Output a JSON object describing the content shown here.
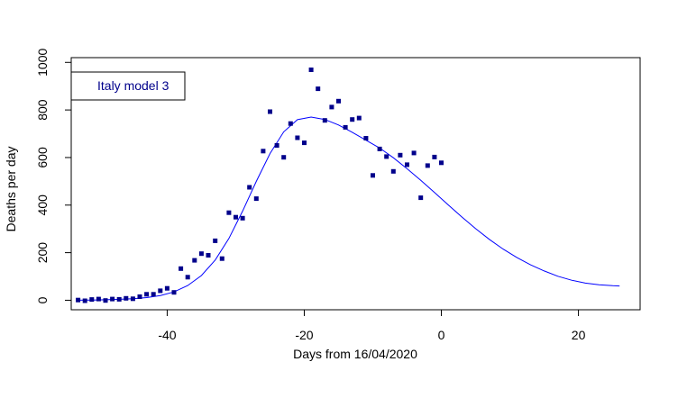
{
  "chart_data": {
    "type": "scatter",
    "title": "",
    "xlabel": "Days from 16/04/2020",
    "ylabel": "Deaths per day",
    "xlim": [
      -54,
      29
    ],
    "ylim": [
      -40,
      1020
    ],
    "x_ticks": [
      -40,
      -20,
      0,
      20
    ],
    "y_ticks": [
      0,
      200,
      400,
      600,
      800,
      1000
    ],
    "grid": false,
    "legend": {
      "position": "top-left",
      "entries": [
        "Italy model 3"
      ]
    },
    "colors": {
      "points": "#00008B",
      "curve": "#0000FF",
      "legend_text": "#00008B",
      "axis": "#000000"
    },
    "series": [
      {
        "type": "scatter",
        "x": [
          -53,
          -52,
          -51,
          -50,
          -49,
          -48,
          -47,
          -46,
          -45,
          -44,
          -43,
          -42,
          -41,
          -40,
          -39,
          -38,
          -37,
          -36,
          -35,
          -34,
          -33,
          -32,
          -31,
          -30,
          -29,
          -28,
          -27,
          -26,
          -25,
          -24,
          -23,
          -22,
          -21,
          -20,
          -19,
          -18,
          -17,
          -16,
          -15,
          -14,
          -13,
          -12,
          -11,
          -10,
          -9,
          -8,
          -7,
          -6,
          -5,
          -4,
          -3,
          -2,
          -1,
          0
        ],
        "y": [
          1,
          -2,
          3,
          5,
          -1,
          5,
          4,
          8,
          6,
          15,
          25,
          25,
          40,
          50,
          33,
          133,
          97,
          168,
          196,
          189,
          250,
          175,
          368,
          349,
          345,
          475,
          427,
          627,
          793,
          651,
          601,
          743,
          683,
          662,
          969,
          889,
          756,
          812,
          837,
          727,
          760,
          766,
          681,
          525,
          636,
          604,
          542,
          610,
          570,
          619,
          431,
          566,
          602,
          578
        ]
      },
      {
        "type": "line",
        "x": [
          -53,
          -51,
          -49,
          -47,
          -45,
          -43,
          -41,
          -39,
          -37,
          -35,
          -33,
          -31,
          -29,
          -27,
          -25,
          -23,
          -21,
          -19,
          -17,
          -15,
          -13,
          -11,
          -9,
          -7,
          -5,
          -3,
          -1,
          1,
          3,
          5,
          7,
          9,
          11,
          13,
          15,
          17,
          19,
          21,
          23,
          25,
          26
        ],
        "y": [
          0,
          1,
          2,
          4,
          6,
          11,
          20,
          35,
          62,
          104,
          169,
          260,
          375,
          500,
          617,
          708,
          759,
          770,
          760,
          737,
          706,
          673,
          640,
          599,
          553,
          504,
          453,
          401,
          350,
          301,
          256,
          215,
          180,
          149,
          123,
          101,
          84,
          72,
          65,
          61,
          60
        ]
      }
    ]
  }
}
